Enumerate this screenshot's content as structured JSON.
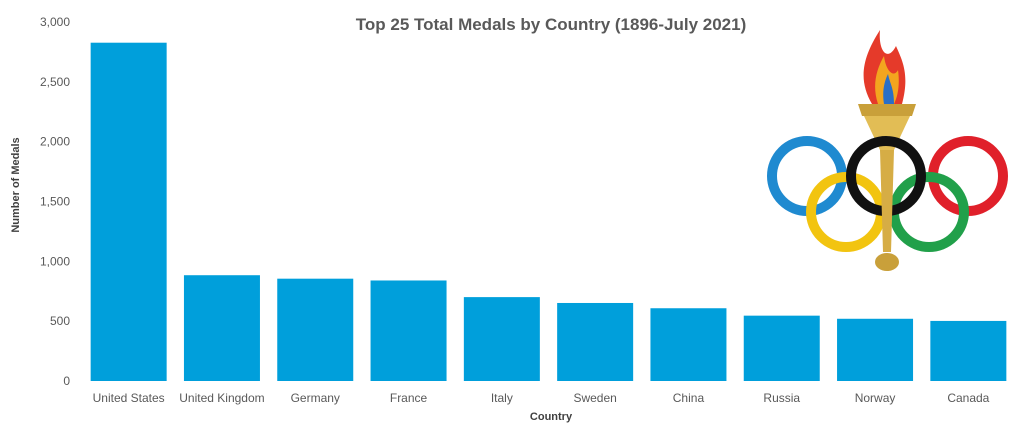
{
  "chart_data": {
    "type": "bar",
    "title": "Top 25 Total Medals by Country  (1896-July 2021)",
    "xlabel": "Country",
    "ylabel": "Number of Medals",
    "categories": [
      "United States",
      "United Kingdom",
      "Germany",
      "France",
      "Italy",
      "Sweden",
      "China",
      "Russia",
      "Norway",
      "Canada"
    ],
    "values": [
      2827,
      884,
      855,
      840,
      701,
      652,
      608,
      546,
      520,
      502
    ],
    "ylim": [
      0,
      3000
    ],
    "yticks": [
      0,
      500,
      1000,
      1500,
      2000,
      2500,
      3000
    ],
    "ytick_labels": [
      "0",
      "500",
      "1,000",
      "1,500",
      "2,000",
      "2,500",
      "3,000"
    ],
    "grid": false,
    "legend": "none",
    "bar_color": "#009fdb",
    "decoration": "olympic-rings-and-torch-icon"
  }
}
